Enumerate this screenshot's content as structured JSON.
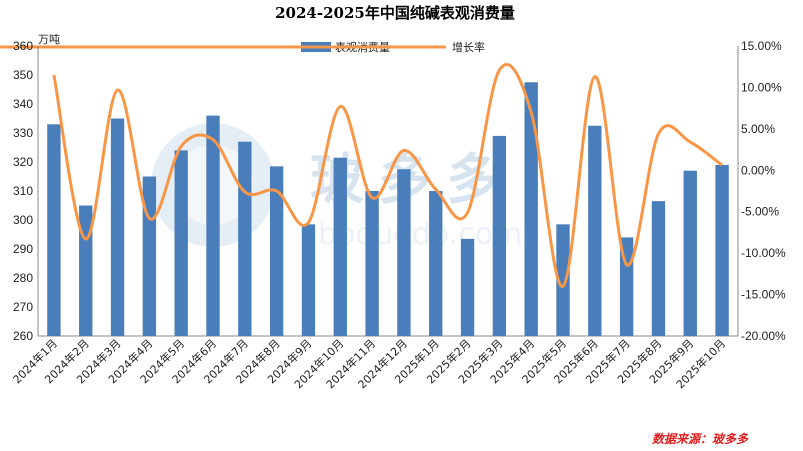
{
  "chart_data": {
    "type": "bar",
    "title": "2024-2025年中国纯碱表观消费量",
    "unit_label": "万吨",
    "categories": [
      "2024年1月",
      "2024年2月",
      "2024年3月",
      "2024年4月",
      "2024年5月",
      "2024年6月",
      "2024年7月",
      "2024年8月",
      "2024年9月",
      "2024年10月",
      "2024年11月",
      "2024年12月",
      "2025年1月",
      "2025年2月",
      "2025年3月",
      "2025年4月",
      "2025年5月",
      "2025年6月",
      "2025年7月",
      "2025年8月",
      "2025年9月",
      "2025年10月"
    ],
    "series": [
      {
        "name": "表观消费量",
        "type": "bar",
        "axis": "left",
        "color": "#4a7ebb",
        "values": [
          333,
          305,
          335,
          315,
          324,
          336,
          327,
          318.5,
          298.5,
          321.5,
          310,
          317.5,
          310,
          293.5,
          329,
          347.5,
          298.5,
          332.5,
          294,
          306.5,
          317,
          319
        ]
      },
      {
        "name": "增长率",
        "type": "line",
        "axis": "right",
        "color": "#f79646",
        "values": [
          11.5,
          -8.3,
          9.7,
          -5.8,
          2.9,
          3.7,
          -2.6,
          -2.5,
          -6.3,
          7.7,
          -3.3,
          2.4,
          -2.3,
          -5.1,
          12.1,
          7.0,
          -14.0,
          11.3,
          -11.4,
          4.4,
          3.4,
          0.6
        ]
      }
    ],
    "y_left": {
      "min": 260,
      "max": 360,
      "step": 10
    },
    "y_right": {
      "min": -20,
      "max": 15,
      "step": 5,
      "format": "percent_2dp"
    },
    "legend_position": "top-center",
    "grid": false
  },
  "source": {
    "label": "数据来源：",
    "name": "玻多多",
    "color": "#e02020"
  },
  "watermark": {
    "text": "玻多多",
    "url_text": "boduodo.com"
  }
}
